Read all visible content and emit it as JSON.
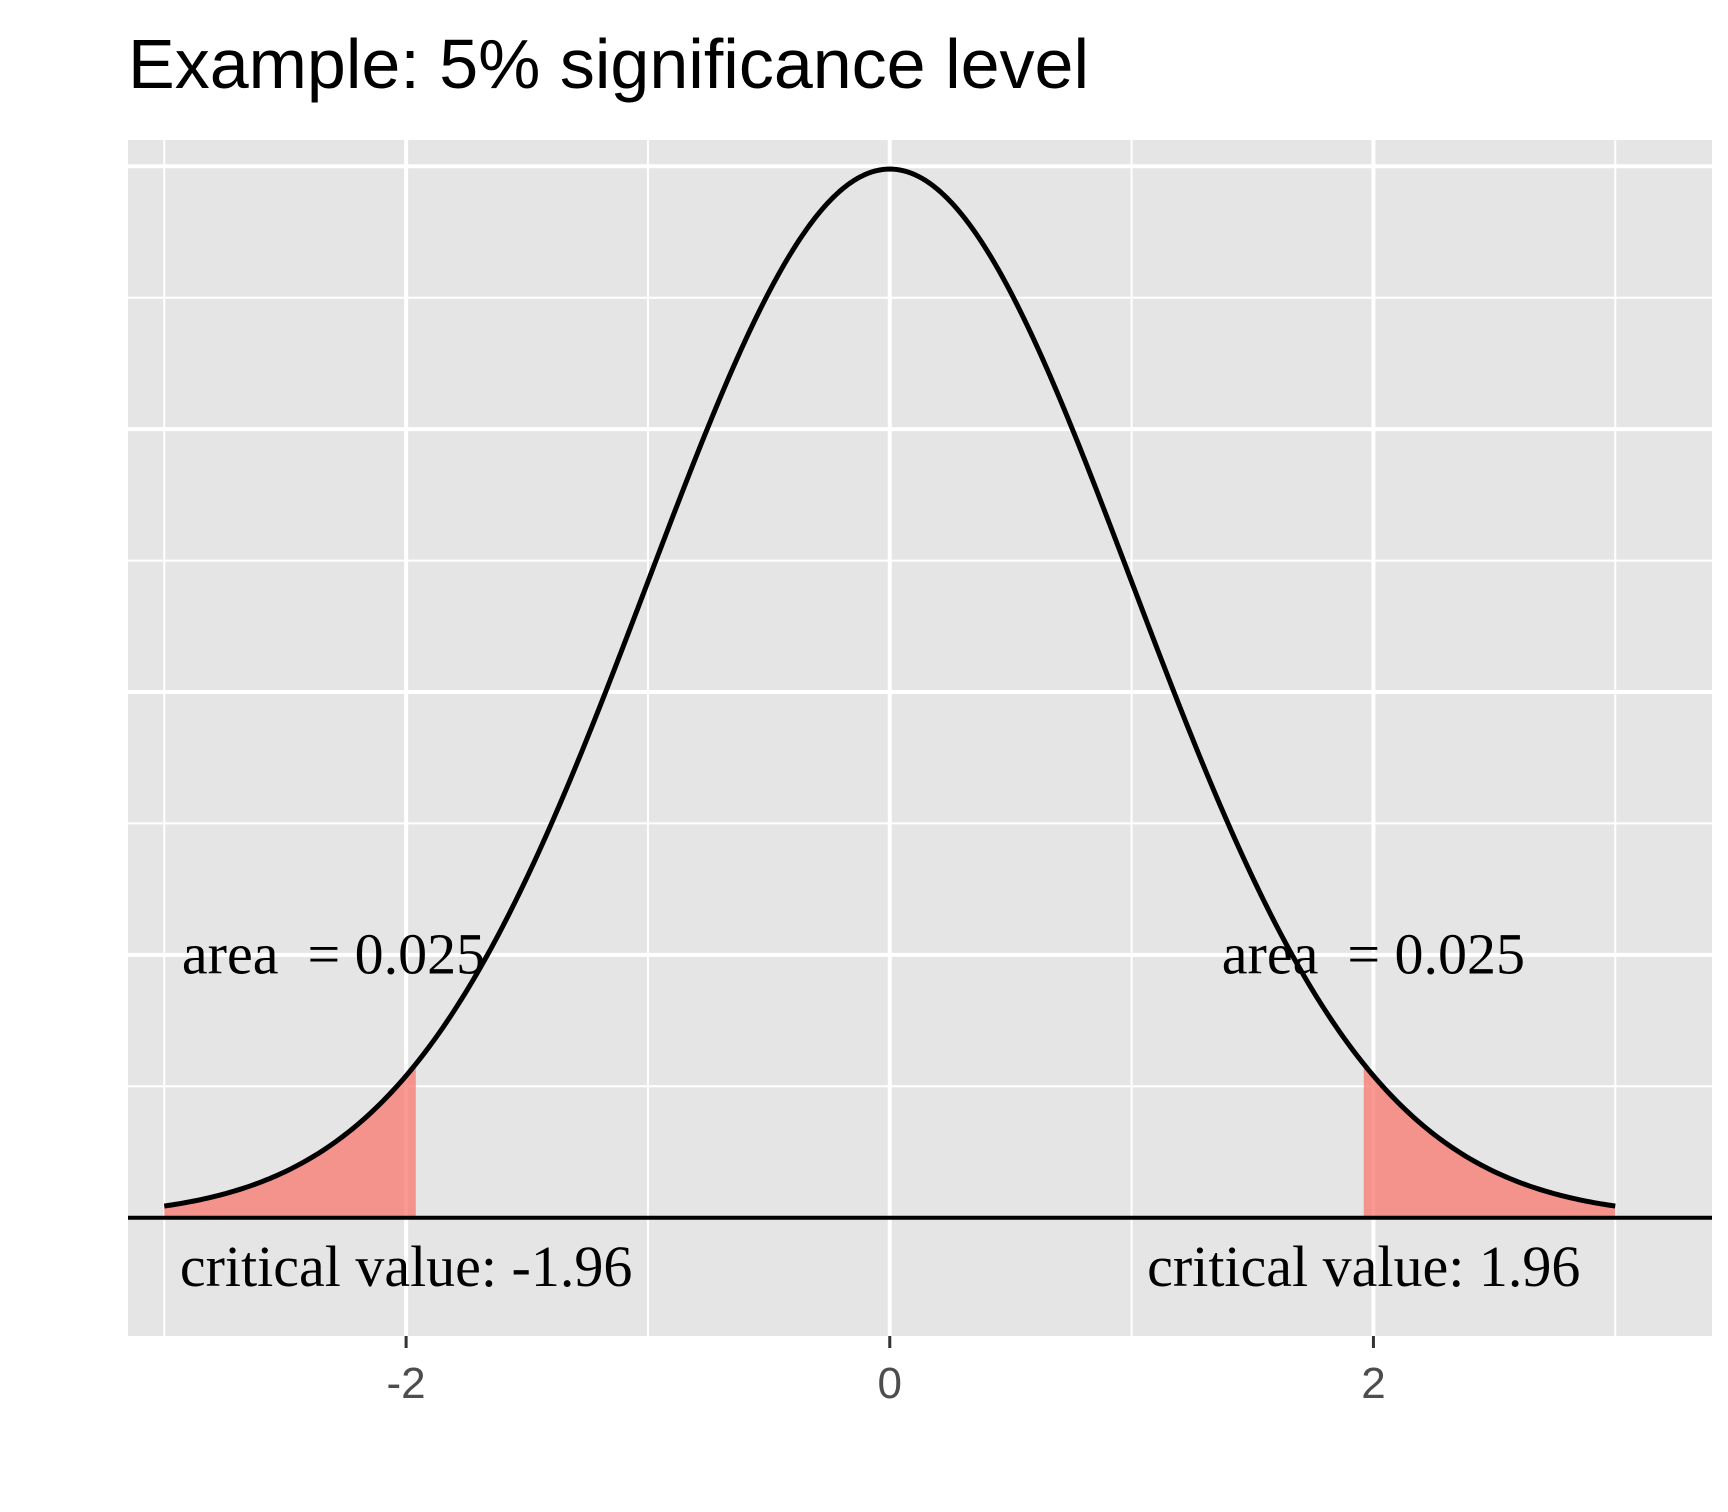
{
  "chart_data": {
    "type": "area",
    "title": "Example: 5% significance level",
    "xlabel": "",
    "ylabel": "",
    "xlim": [
      -3.15,
      3.4
    ],
    "ylim": [
      -0.045,
      0.41
    ],
    "x_ticks": [
      -2,
      0,
      2
    ],
    "x_tick_labels": [
      "-2",
      "0",
      "2"
    ],
    "x_minor_gridlines": [
      -3,
      -1,
      1,
      3
    ],
    "y_major_gridlines": [
      0.1,
      0.2,
      0.3,
      0.4
    ],
    "y_minor_gridlines": [
      0.05,
      0.15,
      0.25,
      0.35
    ],
    "grid": true,
    "background_color": "#e5e5e5",
    "series": [
      {
        "kind": "standard-normal-density",
        "x_range": [
          -3,
          3
        ],
        "color": "#000000",
        "x": [
          -3,
          -2.5,
          -2,
          -1.5,
          -1,
          -0.5,
          0,
          0.5,
          1,
          1.5,
          2,
          2.5,
          3
        ],
        "y": [
          0.0044,
          0.0175,
          0.054,
          0.1295,
          0.242,
          0.3521,
          0.3989,
          0.3521,
          0.242,
          0.1295,
          0.054,
          0.0175,
          0.0044
        ]
      }
    ],
    "shaded_regions": [
      {
        "from": -3,
        "to": -1.96,
        "color": "#f8766d",
        "opacity": 0.75
      },
      {
        "from": 1.96,
        "to": 3,
        "color": "#f8766d",
        "opacity": 0.75
      }
    ],
    "baseline_y": 0,
    "annotations": [
      {
        "text": "area  = 0.025",
        "x": -2.3,
        "y": 0.098
      },
      {
        "text": "area  = 0.025",
        "x": 2.0,
        "y": 0.098
      },
      {
        "text": "critical value: -1.96",
        "x": -2.0,
        "y": -0.021
      },
      {
        "text": "critical value: 1.96",
        "x": 1.96,
        "y": -0.021
      }
    ]
  }
}
